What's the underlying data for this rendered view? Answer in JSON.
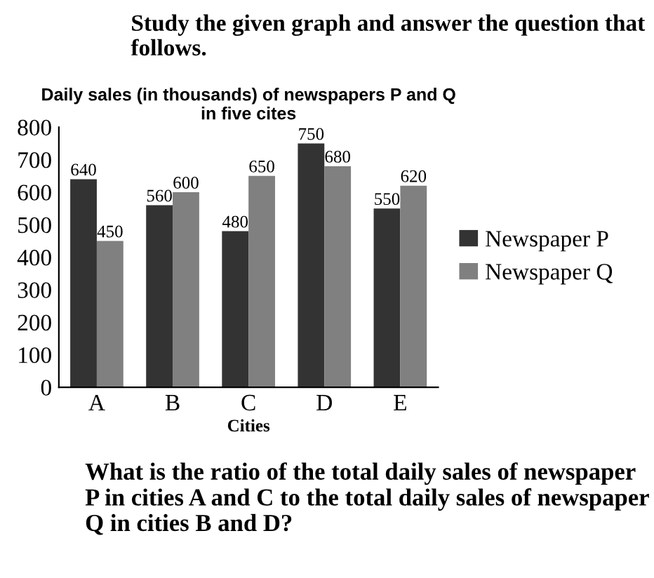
{
  "chart_data": {
    "type": "bar",
    "subtitle": "Study the given graph and answer the question that follows.",
    "title": "Daily sales (in thousands) of newspapers P and Q\nin five cites",
    "xlabel": "Cities",
    "categories": [
      "A",
      "B",
      "C",
      "D",
      "E"
    ],
    "series": [
      {
        "name": "Newspaper P",
        "color": "#333333",
        "values": [
          640,
          560,
          480,
          750,
          550
        ]
      },
      {
        "name": "Newspaper Q",
        "color": "#808080",
        "values": [
          450,
          600,
          650,
          680,
          620
        ]
      }
    ],
    "ylim": [
      0,
      800
    ],
    "yticks": [
      0,
      100,
      200,
      300,
      400,
      500,
      600,
      700,
      800
    ],
    "data_labels": true,
    "grid": false,
    "legend": "right",
    "annotations": [
      "What is the ratio of the total daily sales of newspaper P in cities A and C to the total daily sales of newspaper Q in cities B and D?"
    ]
  }
}
